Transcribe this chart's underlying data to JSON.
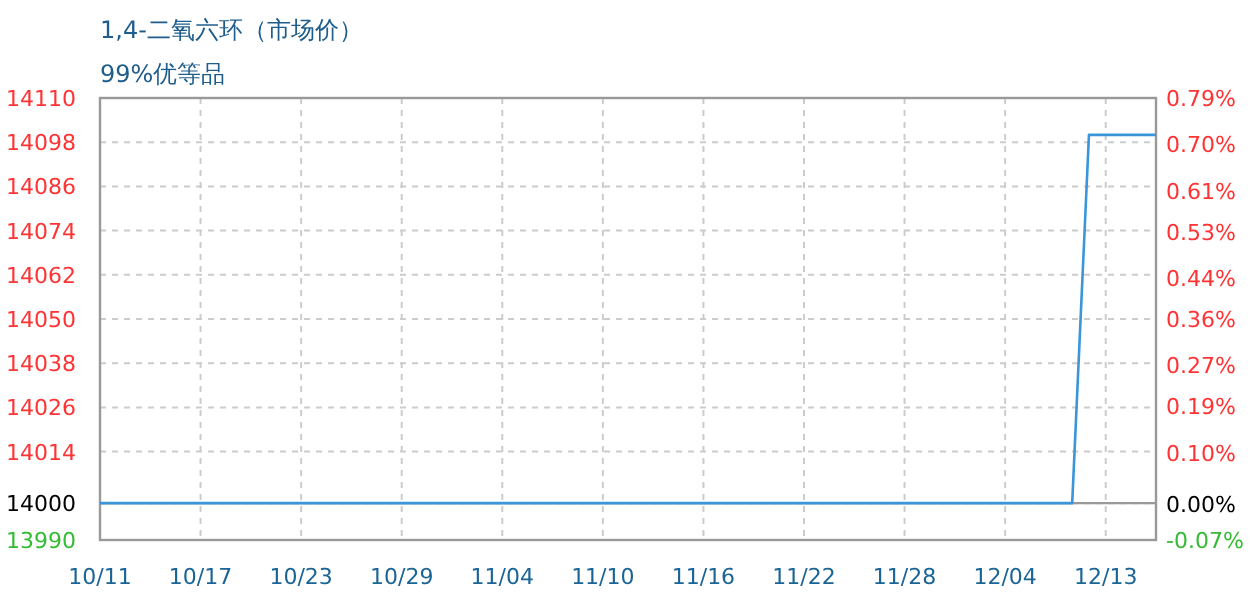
{
  "chart_data": {
    "type": "line",
    "title": "1,4-二氧六环（市场价）",
    "subtitle": "99%优等品",
    "categories": [
      "10/11",
      null,
      null,
      null,
      null,
      null,
      "10/17",
      null,
      null,
      null,
      null,
      null,
      "10/23",
      null,
      null,
      null,
      null,
      null,
      "10/29",
      null,
      null,
      null,
      null,
      null,
      "11/04",
      null,
      null,
      null,
      null,
      null,
      "11/10",
      null,
      null,
      null,
      null,
      null,
      "11/16",
      null,
      null,
      null,
      null,
      null,
      "11/22",
      null,
      null,
      null,
      null,
      null,
      "11/28",
      null,
      null,
      null,
      null,
      null,
      "12/04",
      null,
      null,
      null,
      null,
      null,
      "12/13",
      null,
      null,
      null
    ],
    "series": [
      {
        "color": "#3a96d8",
        "values": [
          14000,
          14000,
          14000,
          14000,
          14000,
          14000,
          14000,
          14000,
          14000,
          14000,
          14000,
          14000,
          14000,
          14000,
          14000,
          14000,
          14000,
          14000,
          14000,
          14000,
          14000,
          14000,
          14000,
          14000,
          14000,
          14000,
          14000,
          14000,
          14000,
          14000,
          14000,
          14000,
          14000,
          14000,
          14000,
          14000,
          14000,
          14000,
          14000,
          14000,
          14000,
          14000,
          14000,
          14000,
          14000,
          14000,
          14000,
          14000,
          14000,
          14000,
          14000,
          14000,
          14000,
          14000,
          14000,
          14000,
          14000,
          14000,
          14000,
          14100,
          14100,
          14100,
          14100,
          14100
        ]
      }
    ],
    "ylim": [
      13990,
      14110
    ],
    "yticks": [
      13990,
      14000,
      14014,
      14026,
      14038,
      14050,
      14062,
      14074,
      14086,
      14098,
      14110
    ],
    "y2lim": [
      -0.07,
      0.79
    ],
    "y2ticks": [
      {
        "value": -0.07,
        "label": "-0.07%"
      },
      {
        "value": 0,
        "label": "0.00%"
      },
      {
        "value": 0.1,
        "label": "0.10%"
      },
      {
        "value": 0.19,
        "label": "0.19%"
      },
      {
        "value": 0.27,
        "label": "0.27%"
      },
      {
        "value": 0.36,
        "label": "0.36%"
      },
      {
        "value": 0.44,
        "label": "0.44%"
      },
      {
        "value": 0.53,
        "label": "0.53%"
      },
      {
        "value": 0.61,
        "label": "0.61%"
      },
      {
        "value": 0.7,
        "label": "0.70%"
      },
      {
        "value": 0.79,
        "label": "0.79%"
      }
    ],
    "ref_lines": [
      {
        "axis": "y",
        "value": 14000,
        "color": "#999999",
        "line_style": "solid"
      }
    ],
    "grid": true,
    "marker": "none",
    "line_style": "solid"
  }
}
